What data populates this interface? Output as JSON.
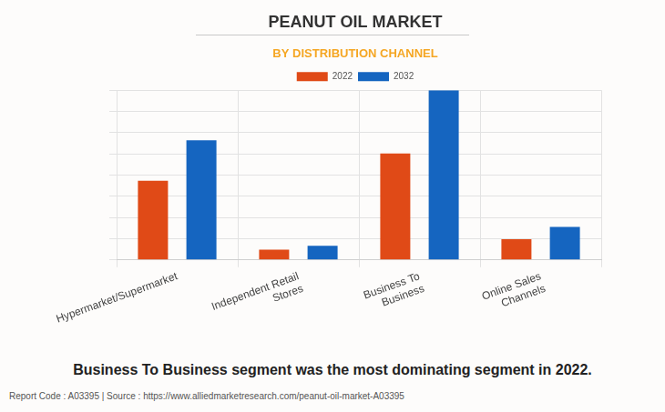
{
  "chart_data": {
    "type": "bar",
    "title": "PEANUT OIL MARKET",
    "subtitle": "BY DISTRIBUTION CHANNEL",
    "annotation": "Business To Business segment was the most dominating segment in 2022.",
    "source": "Report Code : A03395  |  Source : https://www.alliedmarketresearch.com/peanut-oil-market-A03395",
    "categories": [
      "Hypermarket/Supermarket",
      "Independent Retail Stores",
      "Business To Business",
      "Online Sales Channels"
    ],
    "series": [
      {
        "name": "2022",
        "color": "#e04a17",
        "values": [
          3.73,
          0.49,
          5.02,
          0.98
        ]
      },
      {
        "name": "2032",
        "color": "#1565c0",
        "values": [
          5.64,
          0.67,
          8.0,
          1.56
        ]
      }
    ],
    "ylim": [
      0,
      8
    ],
    "yticks": [
      0,
      1,
      2,
      3,
      4,
      5,
      6,
      7,
      8
    ],
    "grid": true,
    "legend": "top",
    "tick_labels": "x"
  }
}
